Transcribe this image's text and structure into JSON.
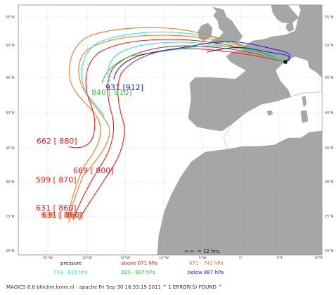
{
  "map": {
    "lat_labels": [
      "55°N",
      "50°N",
      "45°N",
      "40°N",
      "35°N",
      "30°N",
      "25°N",
      "20°N"
    ],
    "lon_labels": [
      "25°W",
      "20°W",
      "15°W",
      "10°W",
      "5°W",
      "0°",
      "5°E",
      "10°E"
    ],
    "colors": {
      "ocean": "#ffffff",
      "land": "#a6a6a6",
      "grid": "#b8b8b8",
      "red": "#ee1c1c",
      "orange": "#f07a18",
      "green": "#32cd32",
      "cyan": "#22e6e6",
      "blue": "#1e1edc"
    },
    "labels": [
      {
        "id": "l1",
        "text": "931 [912]",
        "color": "blue"
      },
      {
        "id": "l2",
        "text": "840 [ 910]",
        "color": "green"
      },
      {
        "id": "l3",
        "text": "662 [ 880]",
        "color": "red"
      },
      {
        "id": "l4",
        "text": "669 [ 900]",
        "color": "red"
      },
      {
        "id": "l5",
        "text": "599 [ 870]",
        "color": "red"
      },
      {
        "id": "l6",
        "text": "631 [ 860]",
        "color": "red"
      },
      {
        "id": "l7",
        "text": "636 [ 850]",
        "color": "orange"
      },
      {
        "id": "l8",
        "text": "631 [ 860]",
        "color": "red"
      }
    ]
  },
  "legend": {
    "arrow_note": ">->- = 12 hrs.",
    "pressure_title": "pressure",
    "above": "above  671 hPa",
    "range1": "671 -   743 hPa",
    "range2": "743 -   815 hPa",
    "range3": "815 -   887 hPa",
    "below": "below  887 hPa"
  },
  "footer": "MAGICS 6.8  bhlclim.knmi.nl - apache  Fri Sep 30 16:33:19 2011  ^    1 ERROR(S) FOUND ^"
}
